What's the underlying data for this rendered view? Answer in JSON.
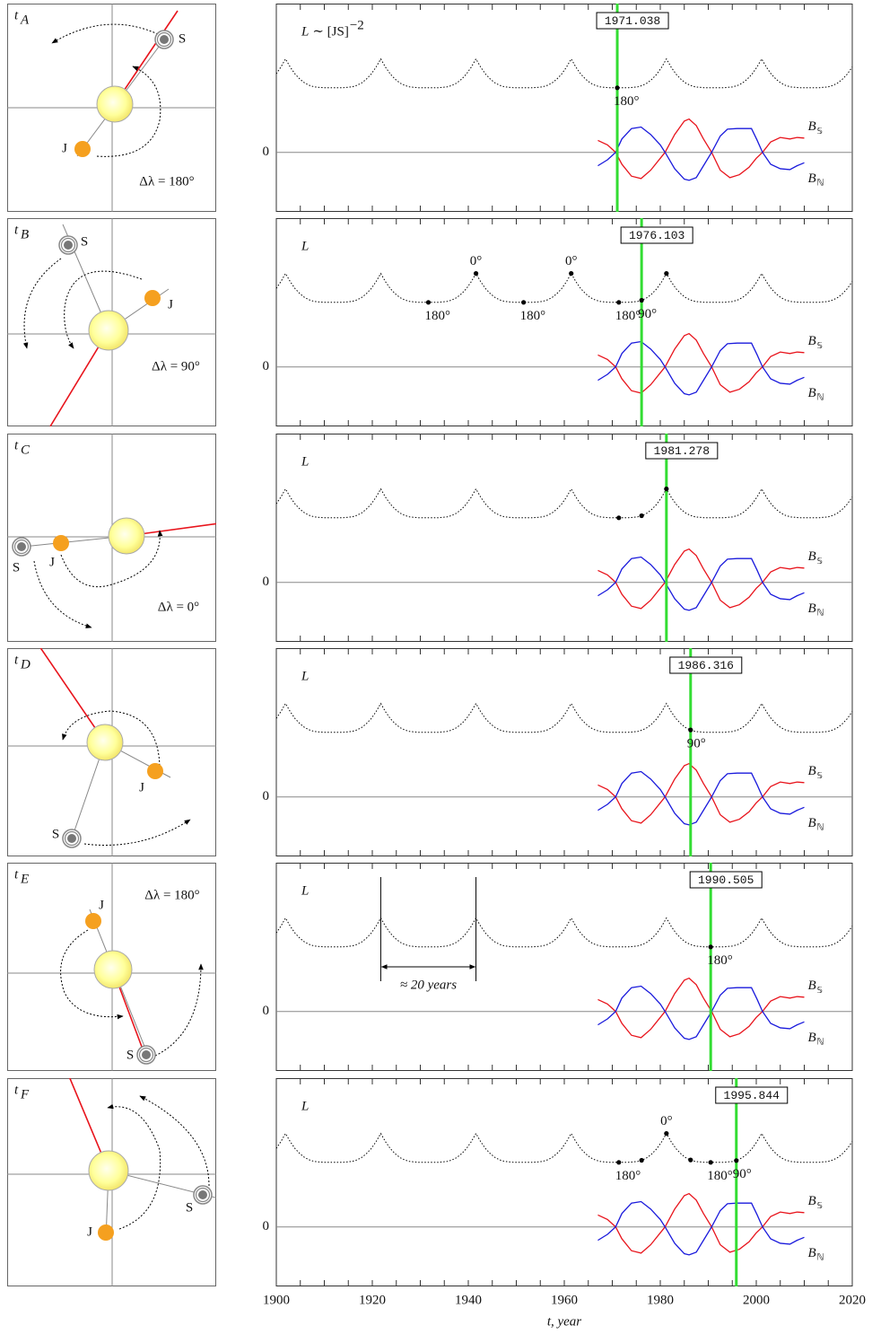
{
  "chart_data": {
    "type": "line",
    "xlim": [
      1900,
      2020
    ],
    "xticks": [
      1900,
      1920,
      1940,
      1960,
      1980,
      2000,
      2020
    ],
    "xminorticks": [
      1900,
      1905,
      1910,
      1915,
      1920,
      1925,
      1930,
      1935,
      1940,
      1945,
      1950,
      1955,
      1960,
      1965,
      1970,
      1975,
      1980,
      1985,
      1990,
      1995,
      2000,
      2005,
      2010,
      2015,
      2020
    ],
    "xlabel": "t, year",
    "ylim": [
      -2,
      5
    ],
    "yticks": [
      0
    ],
    "grid": true,
    "series": [
      {
        "color": "#000000",
        "line_style": "dotted",
        "x": [
          1900,
          1900.92,
          1901.92,
          1902.92,
          1903.92,
          1904.92,
          1905.92,
          1906.92,
          1907.92,
          1909.92,
          1911.84,
          1913.76,
          1915.76,
          1916.76,
          1917.76,
          1918.76,
          1919.76,
          1920.76,
          1921.76,
          1922.76,
          1923.76,
          1924.76,
          1925.76,
          1926.76,
          1927.76,
          1929.76,
          1931.68,
          1933.6,
          1935.6,
          1936.6,
          1937.6,
          1938.6,
          1939.6,
          1940.6,
          1941.6,
          1942.6,
          1943.6,
          1944.6,
          1945.6,
          1946.6,
          1947.6,
          1949.6,
          1951.52,
          1953.44,
          1955.44,
          1956.44,
          1957.44,
          1958.44,
          1959.44,
          1960.44,
          1961.44,
          1962.44,
          1963.44,
          1964.44,
          1965.44,
          1966.44,
          1967.44,
          1969.44,
          1971.36,
          1973.28,
          1975.28,
          1976.28,
          1977.28,
          1978.28,
          1979.28,
          1980.28,
          1981.28,
          1982.28,
          1983.28,
          1984.28,
          1985.28,
          1986.28,
          1987.28,
          1989.28,
          1991.2,
          1993.12,
          1995.12,
          1996.12,
          1997.12,
          1998.12,
          1999.12,
          2000.12,
          2001.12,
          2002.12,
          2003.12,
          2004.12,
          2005.12,
          2006.12,
          2007.12,
          2009.12,
          2011.04,
          2012.96,
          2014.96,
          2015.96,
          2016.96,
          2017.96,
          2018.96,
          2020
        ],
        "values": [
          2.64,
          2.86,
          3.14,
          2.86,
          2.63,
          2.46,
          2.33,
          2.25,
          2.2,
          2.17,
          2.17,
          2.17,
          2.2,
          2.25,
          2.33,
          2.46,
          2.63,
          2.86,
          3.14,
          2.86,
          2.63,
          2.46,
          2.33,
          2.25,
          2.2,
          2.17,
          2.17,
          2.17,
          2.2,
          2.25,
          2.33,
          2.46,
          2.63,
          2.86,
          3.14,
          2.86,
          2.63,
          2.46,
          2.33,
          2.25,
          2.2,
          2.17,
          2.17,
          2.17,
          2.2,
          2.25,
          2.33,
          2.46,
          2.63,
          2.86,
          3.14,
          2.86,
          2.63,
          2.46,
          2.33,
          2.25,
          2.2,
          2.17,
          2.17,
          2.17,
          2.2,
          2.25,
          2.33,
          2.46,
          2.63,
          2.86,
          3.14,
          2.86,
          2.63,
          2.46,
          2.33,
          2.25,
          2.2,
          2.17,
          2.17,
          2.17,
          2.2,
          2.25,
          2.33,
          2.46,
          2.63,
          2.86,
          3.14,
          2.86,
          2.63,
          2.46,
          2.33,
          2.25,
          2.2,
          2.17,
          2.17,
          2.17,
          2.2,
          2.25,
          2.33,
          2.46,
          2.63,
          2.87
        ]
      },
      {
        "name": "B",
        "subscript": "𝕊",
        "color": "#e8141c",
        "x": [
          1967,
          1969,
          1970.7,
          1972,
          1974,
          1976,
          1978,
          1980,
          1981,
          1983,
          1985,
          1986,
          1987.5,
          1989,
          1990.7,
          1992.5,
          1994.5,
          1996.5,
          1998.5,
          2000,
          2001.3,
          2003,
          2005,
          2007,
          2008.5,
          2010
        ],
        "values": [
          0.4,
          0.25,
          0,
          -0.4,
          -0.8,
          -0.88,
          -0.6,
          -0.2,
          0,
          0.6,
          1.05,
          1.12,
          0.9,
          0.45,
          0,
          -0.6,
          -0.85,
          -0.75,
          -0.5,
          -0.2,
          0,
          0.35,
          0.5,
          0.45,
          0.5,
          0.48
        ]
      },
      {
        "name": "B",
        "subscript": "ℕ",
        "color": "#1a1adc",
        "x": [
          1967,
          1969,
          1970.7,
          1972,
          1974,
          1976,
          1978,
          1980,
          1981,
          1983,
          1985,
          1986,
          1987.5,
          1989,
          1990.7,
          1992.5,
          1994,
          1996,
          1999,
          2000.2,
          2001.3,
          2003,
          2005,
          2007,
          2008.5,
          2010
        ],
        "values": [
          -0.45,
          -0.25,
          0,
          0.45,
          0.8,
          0.85,
          0.6,
          0.25,
          0,
          -0.55,
          -0.9,
          -0.94,
          -0.85,
          -0.45,
          0,
          0.55,
          0.78,
          0.8,
          0.8,
          0.4,
          0,
          -0.4,
          -0.55,
          -0.58,
          -0.45,
          -0.35
        ]
      }
    ],
    "panels": [
      {
        "label": "t",
        "label_sub": "A",
        "ylabel": "L",
        "ylabel_formula": "∼ [JS]",
        "ylabel_exponent": "−2",
        "marker": 1971.038,
        "points": [
          {
            "x": 1971.038,
            "y": 2.17,
            "label": "180°"
          }
        ],
        "planets": [
          "J",
          "S"
        ],
        "delta_label": "Δλ = 180°"
      },
      {
        "label": "t",
        "label_sub": "B",
        "ylabel": "L",
        "marker": 1976.103,
        "points": [
          {
            "x": 1931.68,
            "y": 2.17,
            "label": "180°"
          },
          {
            "x": 1941.6,
            "y": 3.14,
            "label": "0°"
          },
          {
            "x": 1951.52,
            "y": 2.17,
            "label": "180°"
          },
          {
            "x": 1961.44,
            "y": 3.14,
            "label": "0°"
          },
          {
            "x": 1971.36,
            "y": 2.17,
            "label": "180°"
          },
          {
            "x": 1976.103,
            "y": 2.24,
            "label": "90°"
          },
          {
            "x": 1981.28,
            "y": 3.14
          }
        ],
        "planets": [
          "J",
          "S"
        ],
        "delta_label": "Δλ = 90°"
      },
      {
        "label": "t",
        "label_sub": "C",
        "ylabel": "L",
        "marker": 1981.278,
        "points": [
          {
            "x": 1971.36,
            "y": 2.17
          },
          {
            "x": 1976.103,
            "y": 2.24
          },
          {
            "x": 1981.278,
            "y": 3.14
          }
        ],
        "planets": [
          "J",
          "S"
        ],
        "delta_label": "Δλ = 0°"
      },
      {
        "label": "t",
        "label_sub": "D",
        "ylabel": "L",
        "marker": 1986.316,
        "points": [
          {
            "x": 1986.316,
            "y": 2.25,
            "label": "90°"
          }
        ],
        "planets": [
          "J",
          "S"
        ]
      },
      {
        "label": "t",
        "label_sub": "E",
        "ylabel": "L",
        "marker": 1990.505,
        "points": [
          {
            "x": 1990.505,
            "y": 2.17,
            "label": "180°"
          }
        ],
        "annotation": {
          "x": [
            1921.76,
            1941.6
          ],
          "label": "≈ 20 years"
        },
        "planets": [
          "J",
          "S"
        ],
        "delta_label": "Δλ = 180°"
      },
      {
        "label": "t",
        "label_sub": "F",
        "ylabel": "L",
        "marker": 1995.844,
        "points": [
          {
            "x": 1971.36,
            "y": 2.17,
            "label": "180°"
          },
          {
            "x": 1976.103,
            "y": 2.24
          },
          {
            "x": 1981.28,
            "y": 3.14,
            "label": "0°"
          },
          {
            "x": 1986.316,
            "y": 2.25
          },
          {
            "x": 1990.505,
            "y": 2.17,
            "label": "180°"
          },
          {
            "x": 1995.844,
            "y": 2.23,
            "label": "90°"
          }
        ],
        "planets": [
          "J",
          "S"
        ]
      }
    ]
  }
}
